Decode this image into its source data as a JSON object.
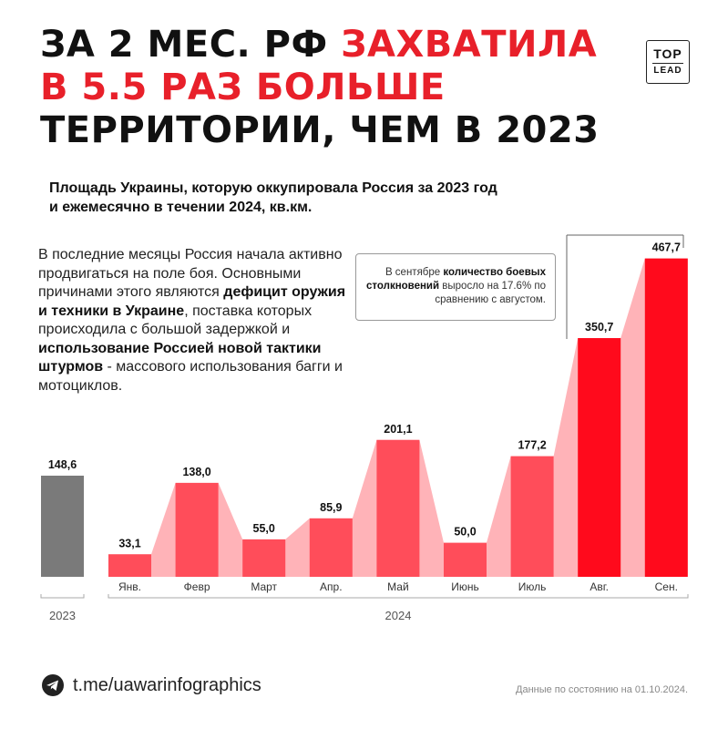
{
  "headline": {
    "line1_black": "ЗА 2 МЕС. РФ ",
    "line1_red": "ЗАХВАТИЛА",
    "line2_red": "В 5.5 РАЗ БОЛЬШЕ",
    "line3_black": "ТЕРРИТОРИИ, ЧЕМ В 2023"
  },
  "logo": {
    "top": "TOP",
    "bottom": "LEAD"
  },
  "subtitle": {
    "line1": "Площадь Украины, которую оккупировала Россия за 2023 год",
    "line2": "и ежемесячно в течении 2024, кв.км."
  },
  "description": {
    "p1": "В последние месяцы Россия начала активно продвигаться на поле боя. Основными причинами этого являются ",
    "b1": "дефицит оружия и техники в Украине",
    "p2": ", поставка которых происходила с большой задержкой и ",
    "b2": "использование Россией новой тактики штурмов",
    "p3": " - массового использования багги и мотоциклов."
  },
  "note": {
    "t1": "В сентябре ",
    "b1": "количество боевых столкновений",
    "t2": " выросло на 17.6% по сравнению с августом."
  },
  "colors": {
    "gray_bar": "#7a7a7a",
    "light_red": "#ff4d5a",
    "strong_red": "#ff0a1c",
    "band": "#ffb3b8",
    "headline_red": "#e8202a"
  },
  "chart_data": {
    "type": "bar",
    "title": "Площадь Украины, которую оккупировала Россия за 2023 год и ежемесячно в течении 2024, кв.км.",
    "reference": {
      "category": "2023",
      "value": 148.6,
      "label": "148,6"
    },
    "categories": [
      "Янв.",
      "Февр",
      "Март",
      "Апр.",
      "Май",
      "Июнь",
      "Июль",
      "Авг.",
      "Сен."
    ],
    "values": [
      33.1,
      138.0,
      55.0,
      85.9,
      201.1,
      50.0,
      177.2,
      350.7,
      467.7
    ],
    "value_labels": [
      "33,1",
      "138,0",
      "55,0",
      "85,9",
      "201,1",
      "50,0",
      "177,2",
      "350,7",
      "467,7"
    ],
    "highlight_from_index": 7,
    "group_labels": {
      "left": "2023",
      "right": "2024"
    },
    "ylim": [
      0,
      480
    ]
  },
  "footer": {
    "link": "t.me/uawarinfographics",
    "note": "Данные по состоянию на 01.10.2024."
  }
}
